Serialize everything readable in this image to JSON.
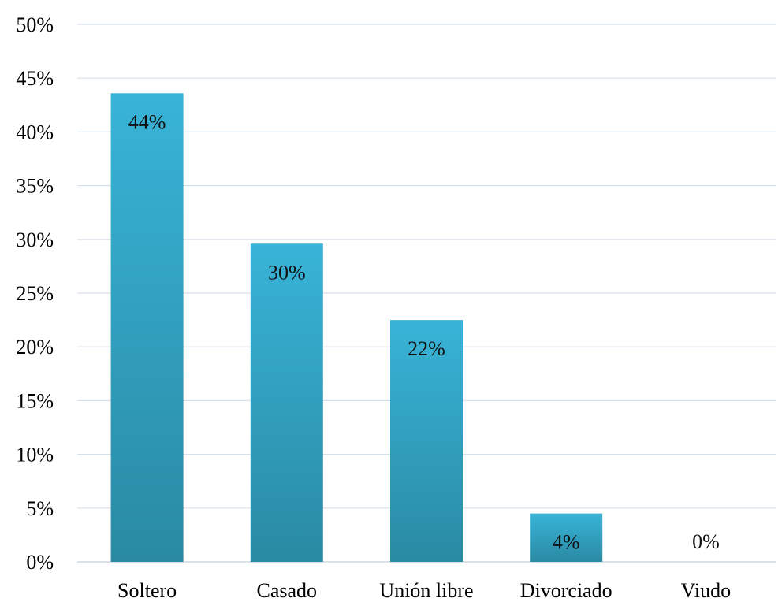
{
  "chart_data": {
    "type": "bar",
    "title": "",
    "xlabel": "",
    "ylabel": "",
    "categories": [
      "Soltero",
      "Casado",
      "Unión libre",
      "Divorciado",
      "Viudo"
    ],
    "values": [
      43.6,
      29.6,
      22.5,
      4.5,
      0
    ],
    "data_labels": [
      "44%",
      "30%",
      "22%",
      "4%",
      "0%"
    ],
    "ylim": [
      0,
      50
    ],
    "yticks": [
      0,
      5,
      10,
      15,
      20,
      25,
      30,
      35,
      40,
      45,
      50
    ],
    "ytick_labels": [
      "0%",
      "5%",
      "10%",
      "15%",
      "20%",
      "25%",
      "30%",
      "35%",
      "40%",
      "45%",
      "50%"
    ],
    "grid": true,
    "legend": "none",
    "colors": {
      "bar_top": "#38b4d8",
      "bar_bottom": "#2a8aa3",
      "grid": "#d7e1ea",
      "axis": "#cfd8df"
    }
  }
}
